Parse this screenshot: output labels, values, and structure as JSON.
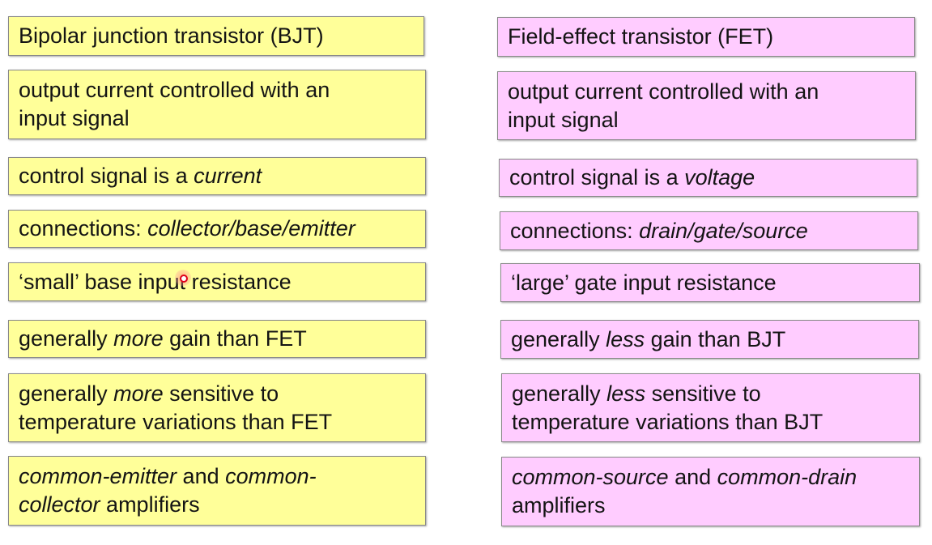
{
  "bjt": {
    "title": "Bipolar junction transistor (BJT)",
    "output_line1": "output current controlled with an",
    "output_line2": "input signal",
    "control_pre": "control signal is a ",
    "control_em": "current",
    "connections_pre": "connections: ",
    "connections_em": "collector/base/emitter",
    "resistance": "‘small’ base input resistance",
    "gain_pre": "generally ",
    "gain_em": "more",
    "gain_post": " gain than FET",
    "temp_pre": "generally ",
    "temp_em": "more",
    "temp_post": " sensitive to",
    "temp_line2": "temperature variations than FET",
    "amp_em1": "common-emitter",
    "amp_mid": " and ",
    "amp_em2a": "common-",
    "amp_em2b": "collector",
    "amp_post": " amplifiers"
  },
  "fet": {
    "title": "Field-effect transistor (FET)",
    "output_line1": "output current controlled with an",
    "output_line2": "input signal",
    "control_pre": "control signal is a ",
    "control_em": "voltage",
    "connections_pre": "connections: ",
    "connections_em": "drain/gate/source",
    "resistance": "‘large’ gate input resistance",
    "gain_pre": "generally ",
    "gain_em": "less",
    "gain_post": " gain than BJT",
    "temp_pre": "generally ",
    "temp_em": "less",
    "temp_post": " sensitive to",
    "temp_line2": "temperature variations than BJT",
    "amp_em1": "common-source",
    "amp_mid": " and ",
    "amp_em2": "common-drain",
    "amp_line2": "amplifiers"
  },
  "colors": {
    "bjt_fill": "#ffff99",
    "fet_fill": "#ffccff",
    "border": "#8a8a8a"
  },
  "cursor": {
    "icon": "pointer-highlight-icon"
  }
}
